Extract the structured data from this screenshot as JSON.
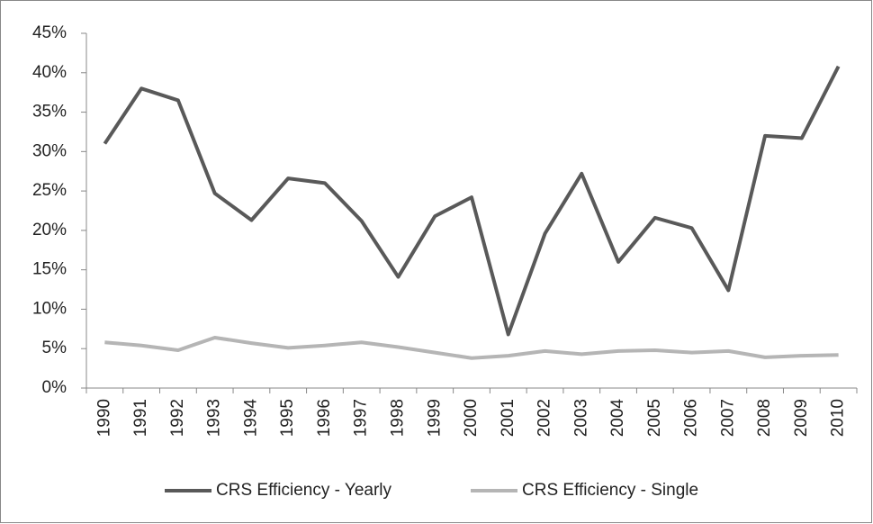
{
  "chart_data": {
    "type": "line",
    "categories": [
      "1990",
      "1991",
      "1992",
      "1993",
      "1994",
      "1995",
      "1996",
      "1997",
      "1998",
      "1999",
      "2000",
      "2001",
      "2002",
      "2003",
      "2004",
      "2005",
      "2006",
      "2007",
      "2008",
      "2009",
      "2010"
    ],
    "series": [
      {
        "name": "CRS Efficiency - Yearly",
        "color": "#595959",
        "values": [
          31,
          38,
          36.5,
          24.7,
          21.3,
          26.6,
          26,
          21.2,
          14.1,
          21.8,
          24.2,
          6.8,
          19.6,
          27.2,
          16,
          21.6,
          20.3,
          12.4,
          32,
          31.7,
          40.8
        ]
      },
      {
        "name": "CRS Efficiency - Single",
        "color": "#b5b5b5",
        "values": [
          5.8,
          5.4,
          4.8,
          6.4,
          5.7,
          5.1,
          5.4,
          5.8,
          5.2,
          4.5,
          3.8,
          4.1,
          4.7,
          4.3,
          4.7,
          4.8,
          4.5,
          4.7,
          3.9,
          4.1,
          4.2
        ]
      }
    ],
    "ylim": [
      0,
      45
    ],
    "yticks": [
      {
        "value": 0,
        "label": "0%"
      },
      {
        "value": 5,
        "label": "5%"
      },
      {
        "value": 10,
        "label": "10%"
      },
      {
        "value": 15,
        "label": "15%"
      },
      {
        "value": 20,
        "label": "20%"
      },
      {
        "value": 25,
        "label": "25%"
      },
      {
        "value": 30,
        "label": "30%"
      },
      {
        "value": 35,
        "label": "35%"
      },
      {
        "value": 40,
        "label": "40%"
      },
      {
        "value": 45,
        "label": "45%"
      }
    ],
    "grid": false,
    "legend": "bottom"
  }
}
